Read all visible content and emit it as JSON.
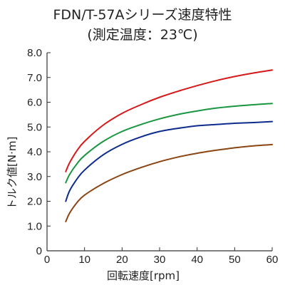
{
  "chart_data": {
    "type": "line",
    "title": "FDN/T-57Aシリーズ速度特性",
    "subtitle": "(測定温度：23℃)",
    "xlabel": "回転速度[rpm]",
    "ylabel": "トルク値[N·m]",
    "xlim": [
      0,
      60
    ],
    "ylim": [
      0,
      8.0
    ],
    "x_ticks": [
      "0",
      "10",
      "20",
      "30",
      "40",
      "50",
      "60"
    ],
    "y_ticks": [
      "0",
      "1.0",
      "2.0",
      "3.0",
      "4.0",
      "5.0",
      "6.0",
      "7.0",
      "8.0"
    ],
    "grid": false,
    "x": [
      5,
      6,
      8,
      10,
      15,
      20,
      25,
      30,
      35,
      40,
      45,
      50,
      55,
      60
    ],
    "series": [
      {
        "color": "#d7191c",
        "values": [
          3.2,
          3.55,
          4.05,
          4.42,
          5.08,
          5.55,
          5.9,
          6.2,
          6.45,
          6.67,
          6.87,
          7.04,
          7.18,
          7.3
        ]
      },
      {
        "color": "#1a9641",
        "values": [
          2.75,
          3.08,
          3.52,
          3.85,
          4.42,
          4.82,
          5.1,
          5.33,
          5.51,
          5.65,
          5.76,
          5.84,
          5.9,
          5.95
        ]
      },
      {
        "color": "#0d2b8c",
        "values": [
          2.0,
          2.42,
          2.9,
          3.26,
          3.88,
          4.3,
          4.6,
          4.82,
          4.95,
          5.05,
          5.1,
          5.15,
          5.18,
          5.22
        ]
      },
      {
        "color": "#8b4513",
        "values": [
          1.18,
          1.52,
          1.95,
          2.25,
          2.72,
          3.08,
          3.36,
          3.6,
          3.79,
          3.94,
          4.06,
          4.16,
          4.24,
          4.29
        ]
      }
    ]
  }
}
